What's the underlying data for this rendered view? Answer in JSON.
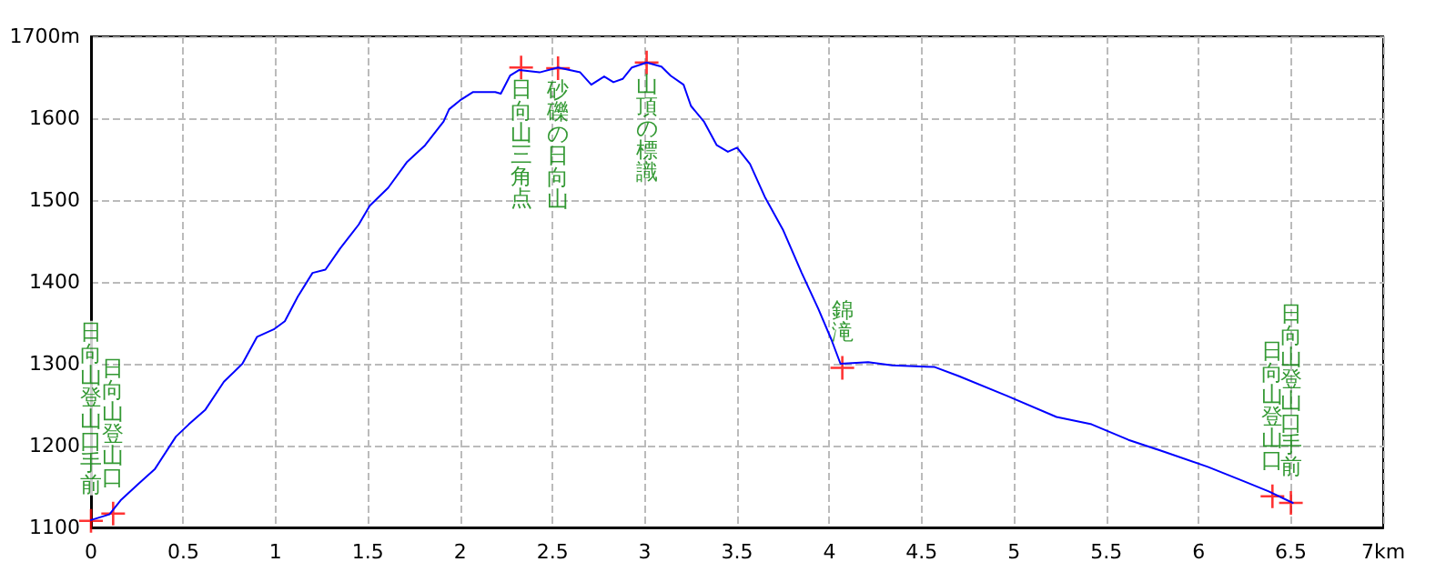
{
  "chart_data": {
    "type": "line",
    "x": [
      0,
      0.1,
      0.16,
      0.26,
      0.345,
      0.46,
      0.53,
      0.62,
      0.72,
      0.82,
      0.9,
      0.99,
      1.05,
      1.12,
      1.2,
      1.27,
      1.35,
      1.45,
      1.51,
      1.61,
      1.71,
      1.81,
      1.91,
      1.94,
      2,
      2.07,
      2.19,
      2.22,
      2.27,
      2.32,
      2.43,
      2.53,
      2.65,
      2.71,
      2.78,
      2.83,
      2.88,
      2.93,
      3.01,
      3.09,
      3.14,
      3.21,
      3.25,
      3.32,
      3.39,
      3.45,
      3.5,
      3.57,
      3.65,
      3.75,
      3.85,
      3.94,
      4.01,
      4.06,
      4.21,
      4.34,
      4.57,
      4.7,
      4.96,
      5.23,
      5.42,
      5.62,
      5.82,
      6.05,
      6.25,
      6.38,
      6.51
    ],
    "series": [
      {
        "color": "#0000ff",
        "marker": "none",
        "line_style": "solid",
        "values": [
          1109,
          1116,
          1133,
          1154,
          1171,
          1211,
          1226,
          1244,
          1278,
          1300,
          1333,
          1342,
          1352,
          1382,
          1411,
          1415,
          1441,
          1470,
          1493,
          1515,
          1546,
          1567,
          1596,
          1611,
          1622,
          1632,
          1632,
          1630,
          1652,
          1659,
          1656,
          1662,
          1656,
          1641,
          1651,
          1644,
          1648,
          1662,
          1668,
          1663,
          1652,
          1641,
          1615,
          1596,
          1567,
          1559,
          1564,
          1544,
          1504,
          1463,
          1411,
          1367,
          1330,
          1300,
          1302,
          1298,
          1296,
          1285,
          1261,
          1235,
          1226,
          1207,
          1192,
          1174,
          1156,
          1144,
          1130
        ]
      },
      {
        "type": "scatter",
        "color": "#ff0000",
        "marker": "cross",
        "x": [
          0,
          0.12,
          2.33,
          2.53,
          3.01,
          4.07,
          6.4,
          6.5
        ],
        "values": [
          1108,
          1117,
          1662,
          1661,
          1668,
          1295,
          1138,
          1130
        ]
      }
    ],
    "annotations": [
      {
        "text": "日向山登山口手前",
        "x": 0,
        "y": 1108
      },
      {
        "text": "日向山登山口",
        "x": 0.12,
        "y": 1117
      },
      {
        "text": "日向山三角点",
        "x": 2.33,
        "y": 1662
      },
      {
        "text": "砂礫の日向山",
        "x": 2.53,
        "y": 1661
      },
      {
        "text": "山頂の標識",
        "x": 3.01,
        "y": 1668
      },
      {
        "text": "錦滝",
        "x": 4.07,
        "y": 1295
      },
      {
        "text": "日向山登山口",
        "x": 6.4,
        "y": 1138
      },
      {
        "text": "日向山登山口手前",
        "x": 6.5,
        "y": 1130
      }
    ],
    "xlim": [
      0,
      7
    ],
    "xticks": [
      0,
      0.5,
      1,
      1.5,
      2,
      2.5,
      3,
      3.5,
      4,
      4.5,
      5,
      5.5,
      6,
      6.5,
      {
        "value": 7,
        "label": "7km"
      }
    ],
    "ylim": [
      1100,
      1700
    ],
    "yticks": [
      1100,
      1200,
      1300,
      1400,
      1500,
      1600,
      {
        "value": 1700,
        "label": "1700m"
      }
    ],
    "grid": true
  }
}
